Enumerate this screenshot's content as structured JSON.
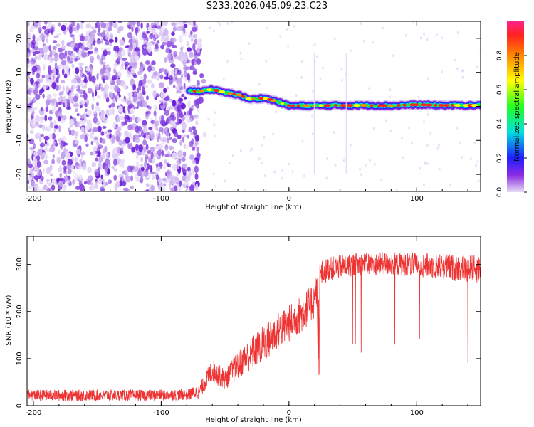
{
  "title": "S233.2026.045.09.23.C23",
  "chart_data": [
    {
      "type": "heatmap",
      "title": "S233.2026.045.09.23.C23",
      "xlabel": "Height of straight line (km)",
      "ylabel": "Frequency (Hz)",
      "xlim": [
        -205,
        150
      ],
      "ylim": [
        -25,
        25
      ],
      "xticks": [
        -200,
        -100,
        0,
        100
      ],
      "yticks": [
        -20,
        -10,
        0,
        10,
        20
      ],
      "colorbar": {
        "label": "Normalized spectral amplitude",
        "range": [
          0,
          1
        ],
        "ticks": [
          0.0,
          0.2,
          0.4,
          0.6,
          0.8
        ],
        "tick_labels": [
          "0.0",
          "0.2",
          "0.4",
          "0.6",
          "0.8"
        ]
      },
      "noise_region_x": [
        -205,
        -65
      ],
      "ridge": {
        "x": [
          -78,
          -70,
          -60,
          -50,
          -40,
          -30,
          -20,
          -10,
          0,
          20,
          40,
          60,
          80,
          100,
          120,
          150
        ],
        "frequency": [
          4.5,
          4.5,
          5.0,
          4.0,
          3.5,
          2.0,
          2.5,
          1.5,
          0.2,
          0.2,
          0.3,
          0.3,
          0.2,
          0.5,
          0.3,
          0.3
        ]
      }
    },
    {
      "type": "line",
      "xlabel": "Height of straight line (km)",
      "ylabel": "SNR (10 * v/v)",
      "xlim": [
        -205,
        150
      ],
      "ylim": [
        0,
        360
      ],
      "xticks": [
        -200,
        -100,
        0,
        100
      ],
      "yticks": [
        0,
        100,
        200,
        300
      ],
      "color": "#ee3333",
      "envelope": {
        "x": [
          -205,
          -120,
          -80,
          -70,
          -60,
          -50,
          -40,
          -30,
          -20,
          -10,
          0,
          10,
          20,
          25,
          30,
          50,
          80,
          100,
          120,
          150
        ],
        "mean": [
          22,
          22,
          23,
          30,
          75,
          55,
          85,
          110,
          130,
          155,
          175,
          195,
          225,
          280,
          290,
          300,
          302,
          300,
          295,
          290
        ],
        "spread": [
          12,
          12,
          12,
          15,
          25,
          22,
          30,
          35,
          40,
          40,
          40,
          40,
          40,
          30,
          25,
          25,
          25,
          25,
          28,
          30
        ]
      }
    }
  ]
}
